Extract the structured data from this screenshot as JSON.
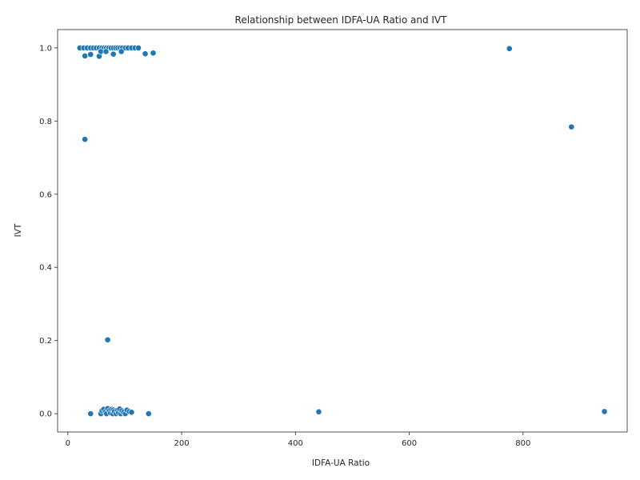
{
  "chart_data": {
    "type": "scatter",
    "title": "Relationship between IDFA-UA Ratio and IVT",
    "xlabel": "IDFA-UA Ratio",
    "ylabel": "IVT",
    "xlim": [
      -18,
      983
    ],
    "ylim": [
      -0.05,
      1.05
    ],
    "xticks": [
      0,
      200,
      400,
      600,
      800
    ],
    "yticks": [
      0.0,
      0.2,
      0.4,
      0.6,
      0.8,
      1.0
    ],
    "xtick_labels": [
      "0",
      "200",
      "400",
      "600",
      "800"
    ],
    "ytick_labels": [
      "0.0",
      "0.2",
      "0.4",
      "0.6",
      "0.8",
      "1.0"
    ],
    "grid": false,
    "marker_color": "#1f77b4",
    "points": [
      {
        "x": 21,
        "y": 1.0
      },
      {
        "x": 28,
        "y": 1.0
      },
      {
        "x": 34,
        "y": 1.0
      },
      {
        "x": 40,
        "y": 1.0
      },
      {
        "x": 45,
        "y": 1.0
      },
      {
        "x": 50,
        "y": 1.0
      },
      {
        "x": 55,
        "y": 1.0
      },
      {
        "x": 60,
        "y": 1.0
      },
      {
        "x": 64,
        "y": 1.0
      },
      {
        "x": 68,
        "y": 1.0
      },
      {
        "x": 72,
        "y": 1.0
      },
      {
        "x": 76,
        "y": 1.0
      },
      {
        "x": 80,
        "y": 1.0
      },
      {
        "x": 84,
        "y": 1.0
      },
      {
        "x": 88,
        "y": 1.0
      },
      {
        "x": 92,
        "y": 1.0
      },
      {
        "x": 96,
        "y": 1.0
      },
      {
        "x": 101,
        "y": 1.0
      },
      {
        "x": 106,
        "y": 1.0
      },
      {
        "x": 112,
        "y": 1.0
      },
      {
        "x": 118,
        "y": 1.0
      },
      {
        "x": 124,
        "y": 1.0
      },
      {
        "x": 30,
        "y": 0.978
      },
      {
        "x": 40,
        "y": 0.982
      },
      {
        "x": 55,
        "y": 0.977
      },
      {
        "x": 58,
        "y": 0.99
      },
      {
        "x": 67,
        "y": 0.99
      },
      {
        "x": 80,
        "y": 0.983
      },
      {
        "x": 94,
        "y": 0.99
      },
      {
        "x": 136,
        "y": 0.984
      },
      {
        "x": 150,
        "y": 0.986
      },
      {
        "x": 776,
        "y": 0.998
      },
      {
        "x": 885,
        "y": 0.784
      },
      {
        "x": 30,
        "y": 0.75
      },
      {
        "x": 70,
        "y": 0.202
      },
      {
        "x": 40,
        "y": 0.0
      },
      {
        "x": 58,
        "y": 0.0
      },
      {
        "x": 60,
        "y": 0.008
      },
      {
        "x": 63,
        "y": 0.012
      },
      {
        "x": 66,
        "y": 0.005
      },
      {
        "x": 68,
        "y": 0.0
      },
      {
        "x": 70,
        "y": 0.014
      },
      {
        "x": 73,
        "y": 0.008
      },
      {
        "x": 75,
        "y": 0.002
      },
      {
        "x": 77,
        "y": 0.012
      },
      {
        "x": 79,
        "y": 0.0
      },
      {
        "x": 80,
        "y": 0.01
      },
      {
        "x": 82,
        "y": 0.006
      },
      {
        "x": 85,
        "y": 0.0
      },
      {
        "x": 87,
        "y": 0.009
      },
      {
        "x": 89,
        "y": 0.003
      },
      {
        "x": 91,
        "y": 0.013
      },
      {
        "x": 93,
        "y": 0.0
      },
      {
        "x": 95,
        "y": 0.008
      },
      {
        "x": 98,
        "y": 0.004
      },
      {
        "x": 101,
        "y": 0.0
      },
      {
        "x": 104,
        "y": 0.01
      },
      {
        "x": 108,
        "y": 0.006
      },
      {
        "x": 112,
        "y": 0.004
      },
      {
        "x": 142,
        "y": 0.0
      },
      {
        "x": 441,
        "y": 0.005
      },
      {
        "x": 943,
        "y": 0.006
      }
    ]
  }
}
